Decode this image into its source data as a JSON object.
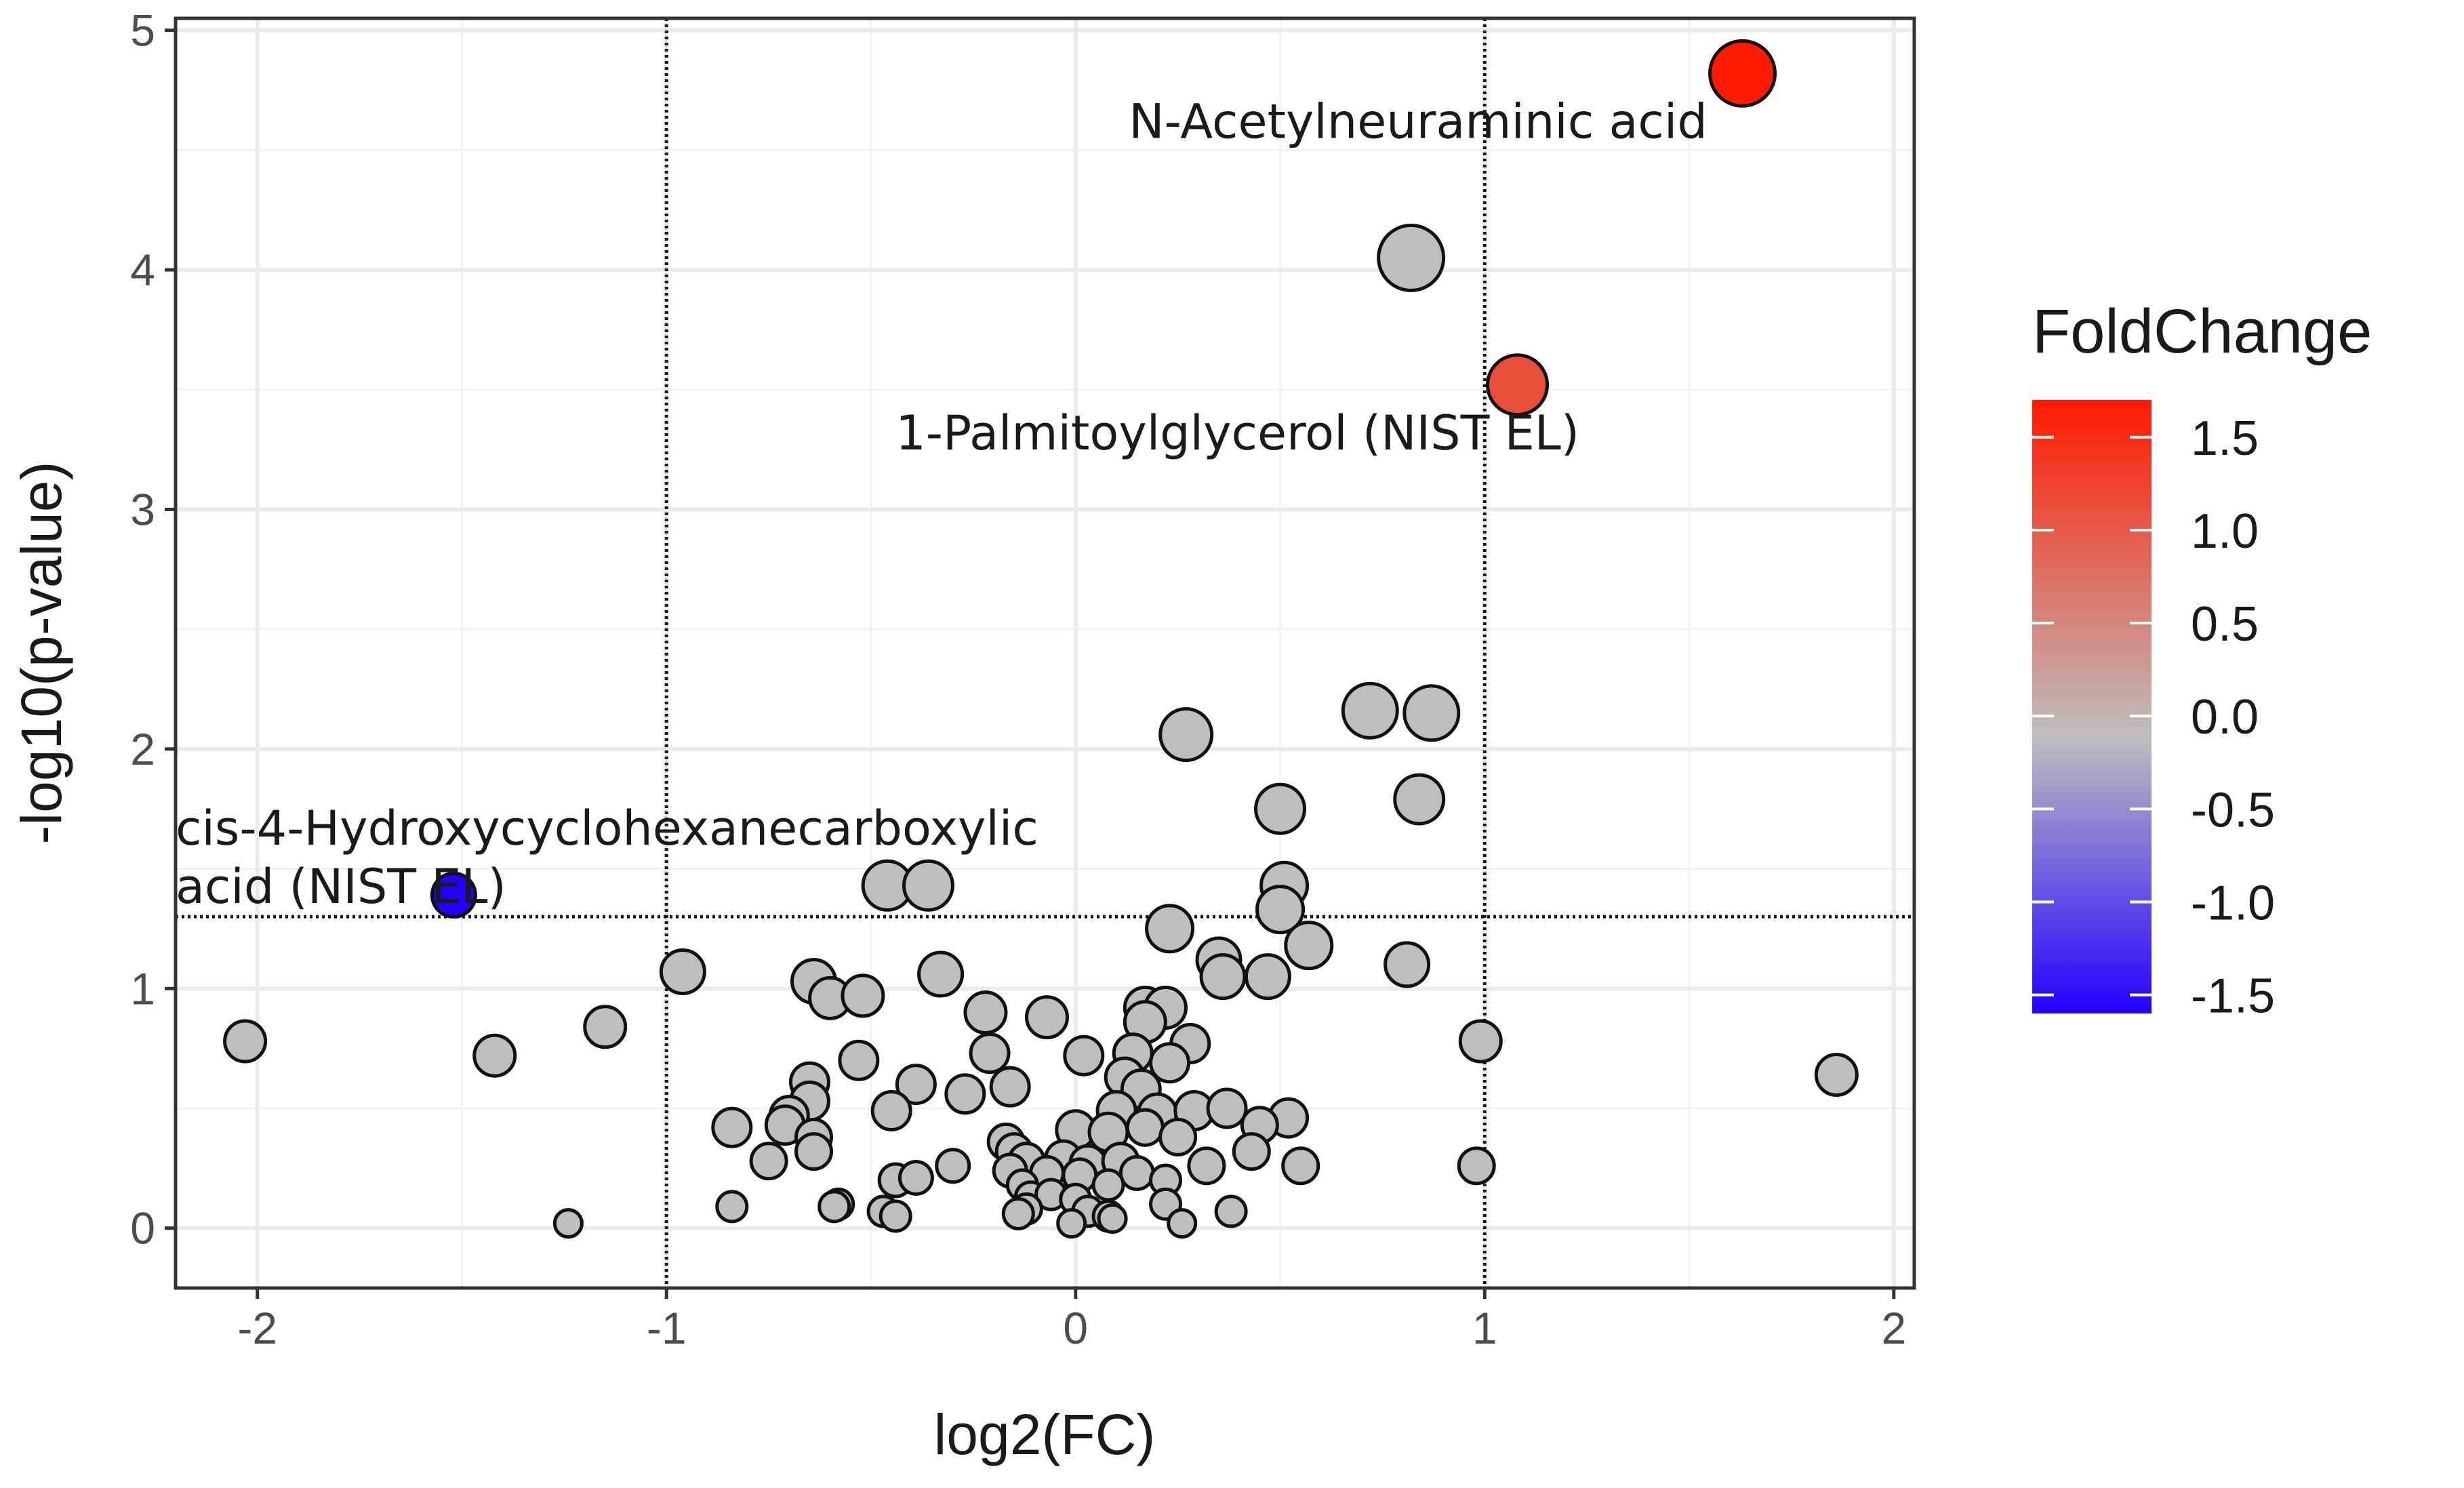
{
  "chart_data": {
    "type": "scatter",
    "title": "",
    "xlabel": "log2(FC)",
    "ylabel": "-log10(p-value)",
    "xlim": [
      -2.2,
      2.05
    ],
    "ylim": [
      -0.25,
      5.05
    ],
    "xticks": [
      -2,
      -1,
      0,
      1,
      2
    ],
    "xtick_labels": [
      "-2",
      "-1",
      "0",
      "1",
      "2"
    ],
    "yticks": [
      0,
      1,
      2,
      3,
      4,
      5
    ],
    "ytick_labels": [
      "0",
      "1",
      "2",
      "3",
      "4",
      "5"
    ],
    "grid": true,
    "thresholds": {
      "log2fc": [
        -1,
        1
      ],
      "neg_log10_p": 1.3
    },
    "legend": {
      "title": "FoldChange",
      "position": "right",
      "range": [
        -1.6,
        1.7
      ],
      "ticks": [
        1.5,
        1.0,
        0.5,
        0.0,
        -0.5,
        -1.0,
        -1.5
      ],
      "tick_labels": [
        "1.5",
        "1.0",
        "0.5",
        "0.0",
        "-0.5",
        "-1.0",
        "-1.5"
      ],
      "colors": {
        "low": "#2200ff",
        "mid": "#bebebe",
        "high": "#ff1a00"
      }
    },
    "annotations": [
      {
        "lines": [
          "N-Acetylneuraminic acid"
        ],
        "x": 0.13,
        "y": 4.55,
        "anchor": "start"
      },
      {
        "lines": [
          "1-Palmitoylglycerol (NIST EL)"
        ],
        "x": -0.44,
        "y": 3.25,
        "anchor": "start"
      },
      {
        "lines": [
          "cis-4-Hydroxycyclohexanecarboxylic",
          "acid (NIST EL)"
        ],
        "x": -2.2,
        "y": 1.6,
        "anchor": "start"
      }
    ],
    "points": [
      {
        "x": 1.63,
        "y": 4.82,
        "s": 48,
        "fc": 1.6
      },
      {
        "x": 0.82,
        "y": 4.05,
        "s": 48,
        "fc": 0
      },
      {
        "x": 1.08,
        "y": 3.52,
        "s": 44,
        "fc": 1.1
      },
      {
        "x": 0.72,
        "y": 2.16,
        "s": 40,
        "fc": 0
      },
      {
        "x": 0.87,
        "y": 2.15,
        "s": 40,
        "fc": 0
      },
      {
        "x": 0.27,
        "y": 2.06,
        "s": 38,
        "fc": 0
      },
      {
        "x": 0.84,
        "y": 1.79,
        "s": 36,
        "fc": 0
      },
      {
        "x": 0.5,
        "y": 1.75,
        "s": 36,
        "fc": 0
      },
      {
        "x": 0.51,
        "y": 1.43,
        "s": 34,
        "fc": 0
      },
      {
        "x": 0.5,
        "y": 1.33,
        "s": 34,
        "fc": 0
      },
      {
        "x": -0.46,
        "y": 1.43,
        "s": 36,
        "fc": 0
      },
      {
        "x": -0.36,
        "y": 1.43,
        "s": 36,
        "fc": 0
      },
      {
        "x": -1.52,
        "y": 1.39,
        "s": 32,
        "fc": -1.5
      },
      {
        "x": 0.23,
        "y": 1.25,
        "s": 34,
        "fc": 0
      },
      {
        "x": 0.57,
        "y": 1.18,
        "s": 34,
        "fc": 0
      },
      {
        "x": 0.35,
        "y": 1.12,
        "s": 32,
        "fc": 0
      },
      {
        "x": 0.36,
        "y": 1.05,
        "s": 32,
        "fc": 0
      },
      {
        "x": 0.47,
        "y": 1.05,
        "s": 32,
        "fc": 0
      },
      {
        "x": 0.81,
        "y": 1.1,
        "s": 32,
        "fc": 0
      },
      {
        "x": -0.96,
        "y": 1.07,
        "s": 32,
        "fc": 0
      },
      {
        "x": -0.64,
        "y": 1.03,
        "s": 32,
        "fc": 0
      },
      {
        "x": -0.33,
        "y": 1.06,
        "s": 32,
        "fc": 0
      },
      {
        "x": -0.6,
        "y": 0.96,
        "s": 30,
        "fc": 0
      },
      {
        "x": -0.52,
        "y": 0.97,
        "s": 30,
        "fc": 0
      },
      {
        "x": -0.22,
        "y": 0.9,
        "s": 30,
        "fc": 0
      },
      {
        "x": -0.07,
        "y": 0.88,
        "s": 30,
        "fc": 0
      },
      {
        "x": 0.17,
        "y": 0.92,
        "s": 30,
        "fc": 0
      },
      {
        "x": 0.22,
        "y": 0.92,
        "s": 30,
        "fc": 0
      },
      {
        "x": 0.17,
        "y": 0.86,
        "s": 30,
        "fc": 0
      },
      {
        "x": -2.03,
        "y": 0.78,
        "s": 30,
        "fc": 0
      },
      {
        "x": -1.42,
        "y": 0.72,
        "s": 30,
        "fc": 0
      },
      {
        "x": -1.15,
        "y": 0.84,
        "s": 30,
        "fc": 0
      },
      {
        "x": 0.99,
        "y": 0.78,
        "s": 30,
        "fc": 0
      },
      {
        "x": 1.86,
        "y": 0.64,
        "s": 30,
        "fc": 0
      },
      {
        "x": -0.21,
        "y": 0.73,
        "s": 28,
        "fc": 0
      },
      {
        "x": 0.02,
        "y": 0.72,
        "s": 28,
        "fc": 0
      },
      {
        "x": 0.14,
        "y": 0.73,
        "s": 28,
        "fc": 0
      },
      {
        "x": 0.28,
        "y": 0.77,
        "s": 28,
        "fc": 0
      },
      {
        "x": 0.23,
        "y": 0.69,
        "s": 28,
        "fc": 0
      },
      {
        "x": -0.53,
        "y": 0.7,
        "s": 28,
        "fc": 0
      },
      {
        "x": -0.65,
        "y": 0.61,
        "s": 28,
        "fc": 0
      },
      {
        "x": -0.39,
        "y": 0.6,
        "s": 28,
        "fc": 0
      },
      {
        "x": -0.16,
        "y": 0.59,
        "s": 28,
        "fc": 0
      },
      {
        "x": 0.12,
        "y": 0.63,
        "s": 28,
        "fc": 0
      },
      {
        "x": 0.16,
        "y": 0.58,
        "s": 28,
        "fc": 0
      },
      {
        "x": -0.65,
        "y": 0.53,
        "s": 28,
        "fc": 0
      },
      {
        "x": -0.27,
        "y": 0.56,
        "s": 28,
        "fc": 0
      },
      {
        "x": -0.7,
        "y": 0.47,
        "s": 28,
        "fc": 0
      },
      {
        "x": -0.45,
        "y": 0.49,
        "s": 28,
        "fc": 0
      },
      {
        "x": 0.1,
        "y": 0.49,
        "s": 28,
        "fc": 0
      },
      {
        "x": 0.2,
        "y": 0.48,
        "s": 28,
        "fc": 0
      },
      {
        "x": 0.29,
        "y": 0.49,
        "s": 28,
        "fc": 0
      },
      {
        "x": 0.37,
        "y": 0.5,
        "s": 28,
        "fc": 0
      },
      {
        "x": 0.52,
        "y": 0.46,
        "s": 28,
        "fc": 0
      },
      {
        "x": -0.71,
        "y": 0.43,
        "s": 28,
        "fc": 0
      },
      {
        "x": -0.84,
        "y": 0.42,
        "s": 28,
        "fc": 0
      },
      {
        "x": -0.64,
        "y": 0.38,
        "s": 26,
        "fc": 0
      },
      {
        "x": 0.0,
        "y": 0.41,
        "s": 28,
        "fc": 0
      },
      {
        "x": 0.08,
        "y": 0.4,
        "s": 28,
        "fc": 0
      },
      {
        "x": 0.17,
        "y": 0.42,
        "s": 26,
        "fc": 0
      },
      {
        "x": 0.45,
        "y": 0.43,
        "s": 26,
        "fc": 0
      },
      {
        "x": -0.17,
        "y": 0.36,
        "s": 26,
        "fc": 0
      },
      {
        "x": 0.25,
        "y": 0.38,
        "s": 26,
        "fc": 0
      },
      {
        "x": -0.64,
        "y": 0.32,
        "s": 26,
        "fc": 0
      },
      {
        "x": -0.15,
        "y": 0.32,
        "s": 26,
        "fc": 0
      },
      {
        "x": 0.43,
        "y": 0.32,
        "s": 26,
        "fc": 0
      },
      {
        "x": -0.75,
        "y": 0.28,
        "s": 26,
        "fc": 0
      },
      {
        "x": -0.12,
        "y": 0.28,
        "s": 26,
        "fc": 0
      },
      {
        "x": -0.03,
        "y": 0.29,
        "s": 26,
        "fc": 0
      },
      {
        "x": 0.03,
        "y": 0.27,
        "s": 26,
        "fc": 0
      },
      {
        "x": 0.11,
        "y": 0.28,
        "s": 26,
        "fc": 0
      },
      {
        "x": 0.32,
        "y": 0.26,
        "s": 26,
        "fc": 0
      },
      {
        "x": 0.55,
        "y": 0.26,
        "s": 26,
        "fc": 0
      },
      {
        "x": 0.98,
        "y": 0.26,
        "s": 26,
        "fc": 0
      },
      {
        "x": -0.3,
        "y": 0.26,
        "s": 24,
        "fc": 0
      },
      {
        "x": -0.16,
        "y": 0.24,
        "s": 24,
        "fc": 0
      },
      {
        "x": -0.07,
        "y": 0.23,
        "s": 24,
        "fc": 0
      },
      {
        "x": 0.01,
        "y": 0.22,
        "s": 24,
        "fc": 0
      },
      {
        "x": 0.15,
        "y": 0.23,
        "s": 24,
        "fc": 0
      },
      {
        "x": -0.44,
        "y": 0.2,
        "s": 24,
        "fc": 0
      },
      {
        "x": -0.39,
        "y": 0.21,
        "s": 24,
        "fc": 0
      },
      {
        "x": -0.13,
        "y": 0.18,
        "s": 22,
        "fc": 0
      },
      {
        "x": 0.08,
        "y": 0.18,
        "s": 22,
        "fc": 0
      },
      {
        "x": 0.22,
        "y": 0.2,
        "s": 22,
        "fc": 0
      },
      {
        "x": -0.11,
        "y": 0.13,
        "s": 22,
        "fc": 0
      },
      {
        "x": -0.06,
        "y": 0.14,
        "s": 22,
        "fc": 0
      },
      {
        "x": 0.0,
        "y": 0.12,
        "s": 22,
        "fc": 0
      },
      {
        "x": 0.22,
        "y": 0.1,
        "s": 22,
        "fc": 0
      },
      {
        "x": -0.58,
        "y": 0.1,
        "s": 22,
        "fc": 0
      },
      {
        "x": -0.84,
        "y": 0.09,
        "s": 22,
        "fc": 0
      },
      {
        "x": -0.59,
        "y": 0.09,
        "s": 22,
        "fc": 0
      },
      {
        "x": -0.12,
        "y": 0.08,
        "s": 22,
        "fc": 0
      },
      {
        "x": -0.47,
        "y": 0.07,
        "s": 22,
        "fc": 0
      },
      {
        "x": -0.44,
        "y": 0.05,
        "s": 22,
        "fc": 0
      },
      {
        "x": -0.14,
        "y": 0.06,
        "s": 22,
        "fc": 0
      },
      {
        "x": 0.03,
        "y": 0.07,
        "s": 22,
        "fc": 0
      },
      {
        "x": 0.08,
        "y": 0.05,
        "s": 22,
        "fc": 0
      },
      {
        "x": 0.38,
        "y": 0.07,
        "s": 22,
        "fc": 0
      },
      {
        "x": -1.24,
        "y": 0.02,
        "s": 20,
        "fc": 0
      },
      {
        "x": -0.01,
        "y": 0.02,
        "s": 20,
        "fc": 0
      },
      {
        "x": 0.26,
        "y": 0.02,
        "s": 20,
        "fc": 0
      },
      {
        "x": 0.09,
        "y": 0.04,
        "s": 20,
        "fc": 0
      }
    ]
  }
}
